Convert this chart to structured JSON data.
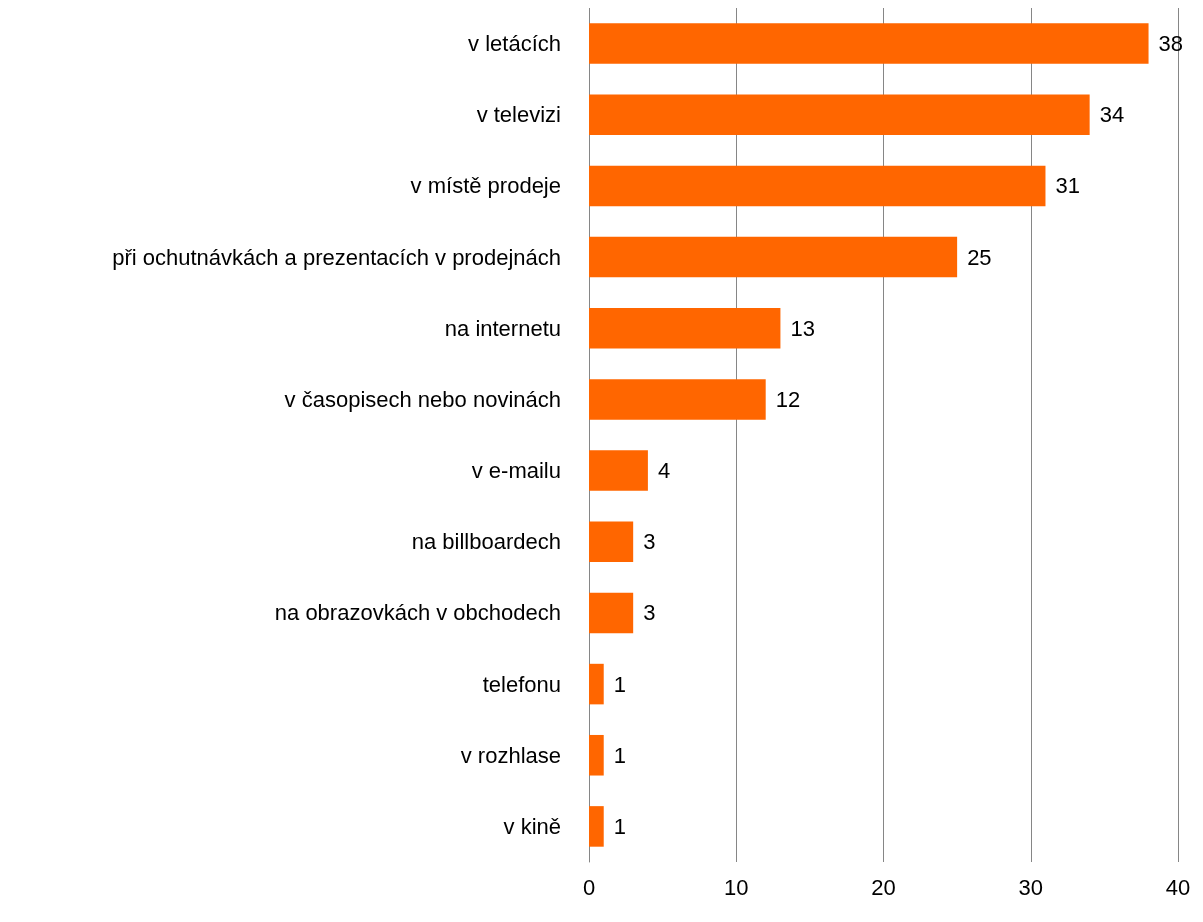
{
  "chart_data": {
    "type": "bar",
    "orientation": "horizontal",
    "categories": [
      "v letácích",
      "v televizi",
      "v místě prodeje",
      "při ochutnávkách a prezentacích v prodejnách",
      "na internetu",
      "v časopisech nebo novinách",
      "v e-mailu",
      "na billboardech",
      "na obrazovkách v obchodech",
      "telefonu",
      "v rozhlase",
      "v kině"
    ],
    "values": [
      38,
      34,
      31,
      25,
      13,
      12,
      4,
      3,
      3,
      1,
      1,
      1
    ],
    "color": "#ff6600",
    "xlim": [
      0,
      40
    ],
    "xticks": [
      0,
      10,
      20,
      30,
      40
    ],
    "grid": "x",
    "data_labels": true
  }
}
